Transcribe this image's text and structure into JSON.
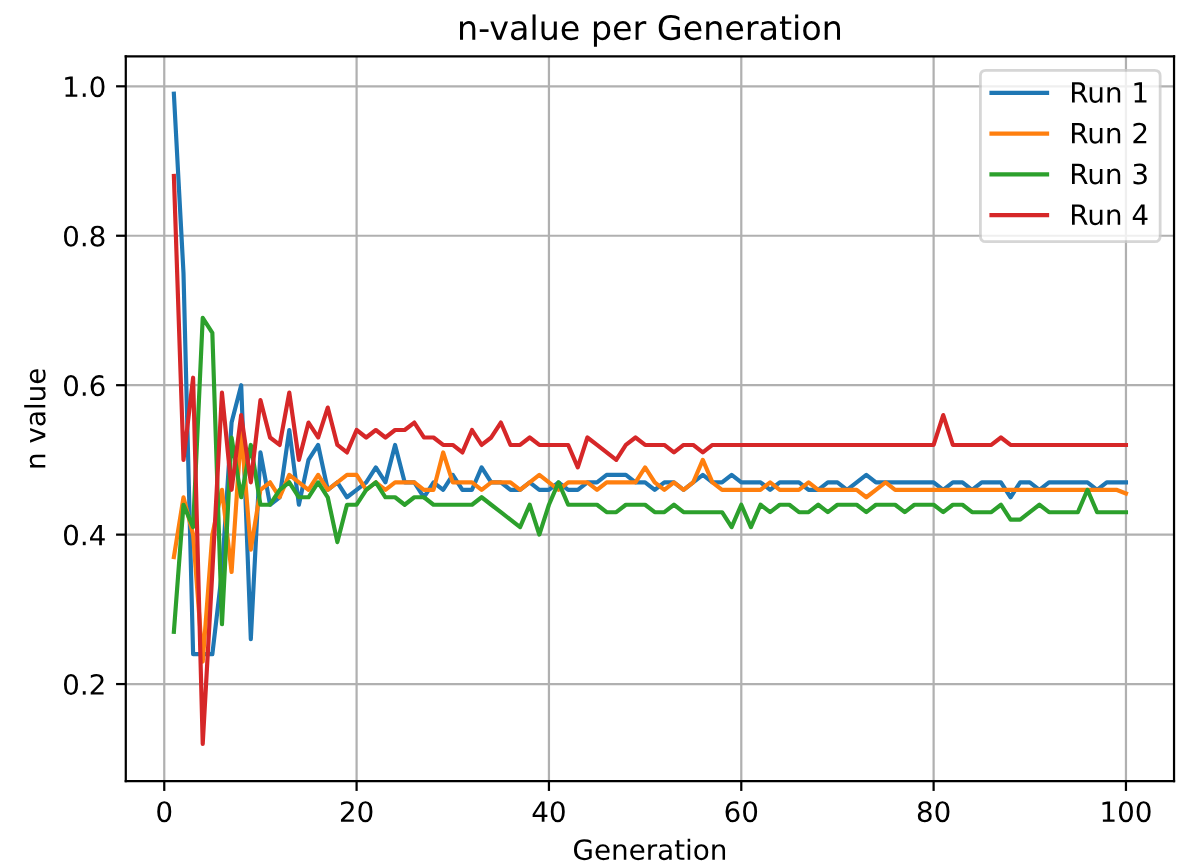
{
  "chart_data": {
    "type": "line",
    "title": "n-value per Generation",
    "xlabel": "Generation",
    "ylabel": "n value",
    "x": [
      1,
      2,
      3,
      4,
      5,
      6,
      7,
      8,
      9,
      10,
      11,
      12,
      13,
      14,
      15,
      16,
      17,
      18,
      19,
      20,
      21,
      22,
      23,
      24,
      25,
      26,
      27,
      28,
      29,
      30,
      31,
      32,
      33,
      34,
      35,
      36,
      37,
      38,
      39,
      40,
      41,
      42,
      43,
      44,
      45,
      46,
      47,
      48,
      49,
      50,
      51,
      52,
      53,
      54,
      55,
      56,
      57,
      58,
      59,
      60,
      61,
      62,
      63,
      64,
      65,
      66,
      67,
      68,
      69,
      70,
      71,
      72,
      73,
      74,
      75,
      76,
      77,
      78,
      79,
      80,
      81,
      82,
      83,
      84,
      85,
      86,
      87,
      88,
      89,
      90,
      91,
      92,
      93,
      94,
      95,
      96,
      97,
      98,
      99,
      100
    ],
    "series": [
      {
        "name": "Run 1",
        "color": "#1f77b4",
        "values": [
          0.99,
          0.75,
          0.24,
          0.24,
          0.24,
          0.35,
          0.55,
          0.6,
          0.26,
          0.51,
          0.44,
          0.45,
          0.54,
          0.44,
          0.5,
          0.52,
          0.46,
          0.47,
          0.45,
          0.46,
          0.47,
          0.49,
          0.47,
          0.52,
          0.47,
          0.47,
          0.45,
          0.47,
          0.46,
          0.48,
          0.46,
          0.46,
          0.49,
          0.47,
          0.47,
          0.46,
          0.46,
          0.47,
          0.46,
          0.46,
          0.47,
          0.46,
          0.46,
          0.47,
          0.47,
          0.48,
          0.48,
          0.48,
          0.47,
          0.47,
          0.46,
          0.47,
          0.47,
          0.46,
          0.47,
          0.48,
          0.47,
          0.47,
          0.48,
          0.47,
          0.47,
          0.47,
          0.46,
          0.47,
          0.47,
          0.47,
          0.46,
          0.46,
          0.47,
          0.47,
          0.46,
          0.47,
          0.48,
          0.47,
          0.47,
          0.47,
          0.47,
          0.47,
          0.47,
          0.47,
          0.46,
          0.47,
          0.47,
          0.46,
          0.47,
          0.47,
          0.47,
          0.45,
          0.47,
          0.47,
          0.46,
          0.47,
          0.47,
          0.47,
          0.47,
          0.47,
          0.46,
          0.47,
          0.47,
          0.47
        ]
      },
      {
        "name": "Run 2",
        "color": "#ff7f0e",
        "values": [
          0.37,
          0.45,
          0.4,
          0.23,
          0.4,
          0.46,
          0.35,
          0.54,
          0.38,
          0.46,
          0.47,
          0.45,
          0.48,
          0.47,
          0.46,
          0.48,
          0.46,
          0.47,
          0.48,
          0.48,
          0.46,
          0.47,
          0.46,
          0.47,
          0.47,
          0.47,
          0.46,
          0.46,
          0.51,
          0.47,
          0.47,
          0.47,
          0.46,
          0.47,
          0.47,
          0.47,
          0.46,
          0.47,
          0.48,
          0.47,
          0.46,
          0.47,
          0.47,
          0.47,
          0.46,
          0.47,
          0.47,
          0.47,
          0.47,
          0.49,
          0.47,
          0.46,
          0.47,
          0.46,
          0.47,
          0.5,
          0.47,
          0.46,
          0.46,
          0.46,
          0.46,
          0.46,
          0.47,
          0.46,
          0.46,
          0.46,
          0.47,
          0.46,
          0.46,
          0.46,
          0.46,
          0.46,
          0.45,
          0.46,
          0.47,
          0.46,
          0.46,
          0.46,
          0.46,
          0.46,
          0.46,
          0.46,
          0.46,
          0.46,
          0.46,
          0.46,
          0.46,
          0.46,
          0.46,
          0.46,
          0.46,
          0.46,
          0.46,
          0.46,
          0.46,
          0.46,
          0.46,
          0.46,
          0.46,
          0.455
        ]
      },
      {
        "name": "Run 3",
        "color": "#2ca02c",
        "values": [
          0.27,
          0.44,
          0.41,
          0.69,
          0.67,
          0.28,
          0.53,
          0.45,
          0.52,
          0.44,
          0.44,
          0.46,
          0.47,
          0.45,
          0.45,
          0.47,
          0.45,
          0.39,
          0.44,
          0.44,
          0.46,
          0.47,
          0.45,
          0.45,
          0.44,
          0.45,
          0.45,
          0.44,
          0.44,
          0.44,
          0.44,
          0.44,
          0.45,
          0.44,
          0.43,
          0.42,
          0.41,
          0.44,
          0.4,
          0.44,
          0.47,
          0.44,
          0.44,
          0.44,
          0.44,
          0.43,
          0.43,
          0.44,
          0.44,
          0.44,
          0.43,
          0.43,
          0.44,
          0.43,
          0.43,
          0.43,
          0.43,
          0.43,
          0.41,
          0.44,
          0.41,
          0.44,
          0.43,
          0.44,
          0.44,
          0.43,
          0.43,
          0.44,
          0.43,
          0.44,
          0.44,
          0.44,
          0.43,
          0.44,
          0.44,
          0.44,
          0.43,
          0.44,
          0.44,
          0.44,
          0.43,
          0.44,
          0.44,
          0.43,
          0.43,
          0.43,
          0.44,
          0.42,
          0.42,
          0.43,
          0.44,
          0.43,
          0.43,
          0.43,
          0.43,
          0.46,
          0.43,
          0.43,
          0.43,
          0.43
        ]
      },
      {
        "name": "Run 4",
        "color": "#d62728",
        "values": [
          0.88,
          0.5,
          0.61,
          0.12,
          0.35,
          0.59,
          0.46,
          0.56,
          0.47,
          0.58,
          0.53,
          0.52,
          0.59,
          0.5,
          0.55,
          0.53,
          0.57,
          0.52,
          0.51,
          0.54,
          0.53,
          0.54,
          0.53,
          0.54,
          0.54,
          0.55,
          0.53,
          0.53,
          0.52,
          0.52,
          0.51,
          0.54,
          0.52,
          0.53,
          0.55,
          0.52,
          0.52,
          0.53,
          0.52,
          0.52,
          0.52,
          0.52,
          0.49,
          0.53,
          0.52,
          0.51,
          0.5,
          0.52,
          0.53,
          0.52,
          0.52,
          0.52,
          0.51,
          0.52,
          0.52,
          0.51,
          0.52,
          0.52,
          0.52,
          0.52,
          0.52,
          0.52,
          0.52,
          0.52,
          0.52,
          0.52,
          0.52,
          0.52,
          0.52,
          0.52,
          0.52,
          0.52,
          0.52,
          0.52,
          0.52,
          0.52,
          0.52,
          0.52,
          0.52,
          0.52,
          0.56,
          0.52,
          0.52,
          0.52,
          0.52,
          0.52,
          0.53,
          0.52,
          0.52,
          0.52,
          0.52,
          0.52,
          0.52,
          0.52,
          0.52,
          0.52,
          0.52,
          0.52,
          0.52,
          0.52
        ]
      }
    ],
    "xlim": [
      -4,
      105
    ],
    "ylim": [
      0.07,
      1.04
    ],
    "xticks": [
      0,
      20,
      40,
      60,
      80,
      100
    ],
    "yticks": [
      0.2,
      0.4,
      0.6,
      0.8,
      {
        "value": 1.0,
        "label": "1.0"
      }
    ],
    "grid": true,
    "legend": "top right",
    "marker": "none",
    "line_style": "solid"
  }
}
